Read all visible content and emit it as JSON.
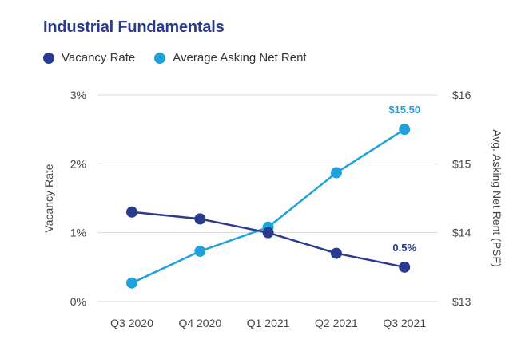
{
  "title": "Industrial Fundamentals",
  "legend": [
    {
      "label": "Vacancy Rate",
      "color": "#2a3b8f"
    },
    {
      "label": "Average Asking Net Rent",
      "color": "#1fa1dc"
    }
  ],
  "chart_data": {
    "type": "line",
    "title": "Industrial Fundamentals",
    "categories": [
      "Q3 2020",
      "Q4 2020",
      "Q1 2021",
      "Q2 2021",
      "Q3 2021"
    ],
    "series": [
      {
        "name": "Vacancy Rate",
        "axis": "left",
        "color": "#2a3b8f",
        "values": [
          1.3,
          1.2,
          1.0,
          0.7,
          0.5
        ],
        "labels": [
          "",
          "",
          "",
          "",
          "0.5%"
        ]
      },
      {
        "name": "Average Asking Net Rent",
        "axis": "right",
        "color": "#1fa1dc",
        "values": [
          13.27,
          13.73,
          14.08,
          14.87,
          15.5
        ],
        "labels": [
          "",
          "",
          "",
          "",
          "$15.50"
        ]
      }
    ],
    "ylabel_left": "Vacancy Rate",
    "ylabel_right": "Avg. Asking Net Rent (PSF)",
    "ylim_left": [
      0,
      3
    ],
    "ylim_right": [
      13,
      16
    ],
    "yticks_left": [
      "0%",
      "1%",
      "2%",
      "3%"
    ],
    "yticks_right": [
      "$13",
      "$14",
      "$15",
      "$16"
    ],
    "grid": true,
    "legend_position": "top-left"
  }
}
